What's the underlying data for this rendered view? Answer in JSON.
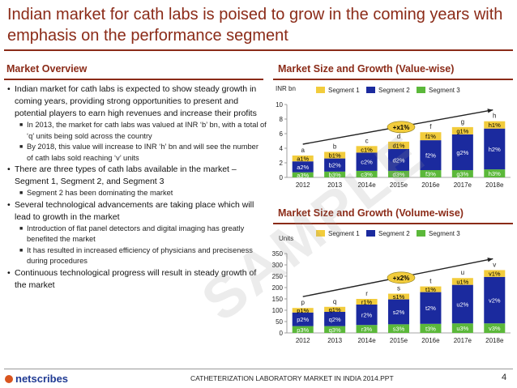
{
  "title": "Indian market for cath labs is poised to grow in the coming years with emphasis on the performance segment",
  "overview": {
    "heading": "Market Overview",
    "bullets": [
      {
        "level": 1,
        "text": "Indian market for cath labs is expected to show steady growth in coming years, providing strong opportunities to present and potential players to earn high revenues and increase their profits"
      },
      {
        "level": 2,
        "text": "In 2013, the market for cath labs was valued at INR ‘b’ bn, with a total of ‘q’ units being sold across the country"
      },
      {
        "level": 2,
        "text": "By 2018, this value will increase to INR ‘h’ bn and will see the number of cath labs sold reaching ‘v’ units"
      },
      {
        "level": 1,
        "text": "There are three types of cath labs available in the market – Segment 1, Segment 2, and Segment 3"
      },
      {
        "level": 2,
        "text": "Segment 2 has been dominating the market"
      },
      {
        "level": 1,
        "text": "Several technological advancements are taking place which will lead to growth in the market"
      },
      {
        "level": 2,
        "text": "Introduction of flat panel detectors and digital imaging has greatly benefited the market"
      },
      {
        "level": 2,
        "text": "It has resulted in increased efficiency of physicians and preciseness during procedures"
      },
      {
        "level": 1,
        "text": "Continuous technological progress will result in steady growth of the market"
      }
    ]
  },
  "colors": {
    "accent": "#8b2b18",
    "seg1": "#f2cc3c",
    "seg2": "#1b2a9e",
    "seg3": "#5bb83a",
    "growth": "#f2cc3c"
  },
  "chart_data": [
    {
      "type": "bar",
      "stacked": true,
      "title": "Market Size and Growth (Value-wise)",
      "unit_label": "INR bn",
      "categories": [
        "2012",
        "2013",
        "2014e",
        "2015e",
        "2016e",
        "2017e",
        "2018e"
      ],
      "ylim": [
        0,
        10
      ],
      "yticks": [
        0,
        2,
        4,
        6,
        8,
        10
      ],
      "legend": [
        "Segment 1",
        "Segment 2",
        "Segment 3"
      ],
      "series": [
        {
          "name": "Segment 3",
          "values": [
            0.7,
            0.8,
            0.9,
            0.9,
            1.0,
            1.0,
            1.1
          ],
          "labels": [
            "a3%",
            "b3%",
            "c3%",
            "d3%",
            "f3%",
            "g3%",
            "h3%"
          ]
        },
        {
          "name": "Segment 2",
          "values": [
            1.5,
            1.8,
            2.5,
            3.0,
            4.1,
            4.9,
            5.6
          ],
          "labels": [
            "a2%",
            "b2%",
            "c2%",
            "d2%",
            "f2%",
            "g2%",
            "h2%"
          ]
        },
        {
          "name": "Segment 1",
          "values": [
            0.8,
            0.9,
            0.9,
            1.0,
            1.1,
            1.0,
            1.0
          ],
          "labels": [
            "a1%",
            "b1%",
            "c1%",
            "d1%",
            "f1%",
            "g1%",
            "h1%"
          ]
        }
      ],
      "totals_labels": [
        "a",
        "b",
        "c",
        "d",
        "f",
        "g",
        "h"
      ],
      "growth_label": "+x1%"
    },
    {
      "type": "bar",
      "stacked": true,
      "title": "Market Size and Growth (Volume-wise)",
      "unit_label": "Units",
      "categories": [
        "2012",
        "2013",
        "2014e",
        "2015e",
        "2016e",
        "2017e",
        "2018e"
      ],
      "ylim": [
        0,
        350
      ],
      "yticks": [
        0,
        50,
        100,
        150,
        200,
        250,
        300,
        350
      ],
      "legend": [
        "Segment 1",
        "Segment 2",
        "Segment 3"
      ],
      "series": [
        {
          "name": "Segment 3",
          "values": [
            30,
            30,
            35,
            38,
            40,
            42,
            42
          ],
          "labels": [
            "p3%",
            "q3%",
            "r3%",
            "s3%",
            "t3%",
            "u3%",
            "v3%"
          ]
        },
        {
          "name": "Segment 2",
          "values": [
            60,
            63,
            90,
            110,
            140,
            170,
            205
          ],
          "labels": [
            "p2%",
            "q2%",
            "r2%",
            "s2%",
            "t2%",
            "u2%",
            "v2%"
          ]
        },
        {
          "name": "Segment 1",
          "values": [
            20,
            22,
            25,
            25,
            25,
            30,
            30
          ],
          "labels": [
            "p1%",
            "q1%",
            "r1%",
            "s1%",
            "t1%",
            "u1%",
            "v1%"
          ]
        }
      ],
      "totals_labels": [
        "p",
        "q",
        "r",
        "s",
        "t",
        "u",
        "v"
      ],
      "growth_label": "+x2%"
    }
  ],
  "watermark": "SAMPLE",
  "footer": {
    "logo": "netscribes",
    "text": "CATHETERIZATION LABORATORY MARKET IN INDIA 2014.PPT",
    "page": "4"
  }
}
